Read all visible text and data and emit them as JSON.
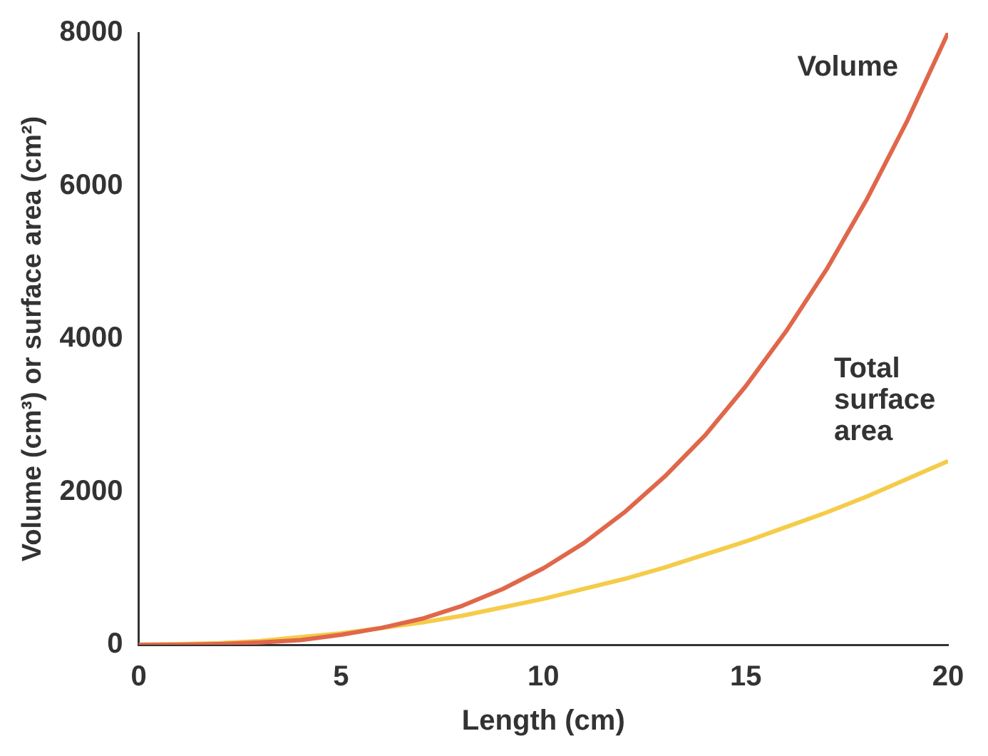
{
  "chart_data": {
    "type": "line",
    "xlabel": "Length (cm)",
    "ylabel": "Volume (cm³) or surface area (cm²)",
    "x": [
      0,
      1,
      2,
      3,
      4,
      5,
      6,
      7,
      8,
      9,
      10,
      11,
      12,
      13,
      14,
      15,
      16,
      17,
      18,
      19,
      20
    ],
    "series": [
      {
        "name": "Volume",
        "color": "#e0674a",
        "values": [
          0,
          0,
          10,
          30,
          60,
          130,
          220,
          340,
          510,
          730,
          1000,
          1330,
          1730,
          2200,
          2740,
          3380,
          4100,
          4910,
          5830,
          6860,
          8000
        ]
      },
      {
        "name": "Total surface area",
        "color": "#f5cc4a",
        "values": [
          0,
          10,
          20,
          50,
          100,
          150,
          220,
          290,
          380,
          490,
          600,
          730,
          860,
          1010,
          1180,
          1350,
          1540,
          1730,
          1940,
          2170,
          2400
        ]
      }
    ],
    "xlim": [
      0,
      20
    ],
    "xticks": [
      0,
      5,
      10,
      15,
      20
    ],
    "ylim": [
      0,
      8000
    ],
    "yticks": [
      0,
      2000,
      4000,
      6000,
      8000
    ],
    "grid": false,
    "legend": false,
    "marker": "none",
    "line_style": "solid"
  }
}
